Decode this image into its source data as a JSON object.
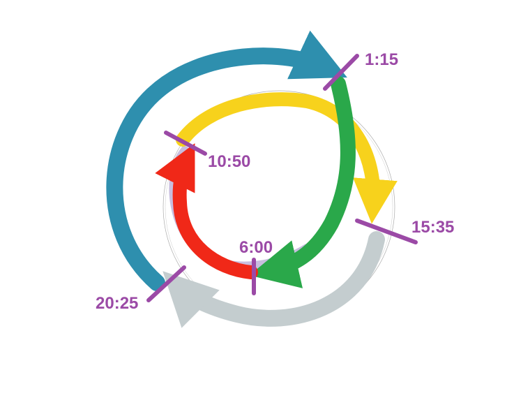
{
  "labels": {
    "t1": "1:15",
    "t2": "10:50",
    "t3": "15:35",
    "t4": "6:00",
    "t5": "20:25"
  },
  "colors": {
    "blue_arc": "#2e8fae",
    "yellow_arc": "#f7d21c",
    "green_arc": "#2aa84a",
    "red_arc": "#f02818",
    "grey_arc": "#c4cdcf",
    "lavender_arc": "#c8bedf",
    "tick_marks": "#9b4aa6",
    "label_text": "#9b4aa6"
  }
}
